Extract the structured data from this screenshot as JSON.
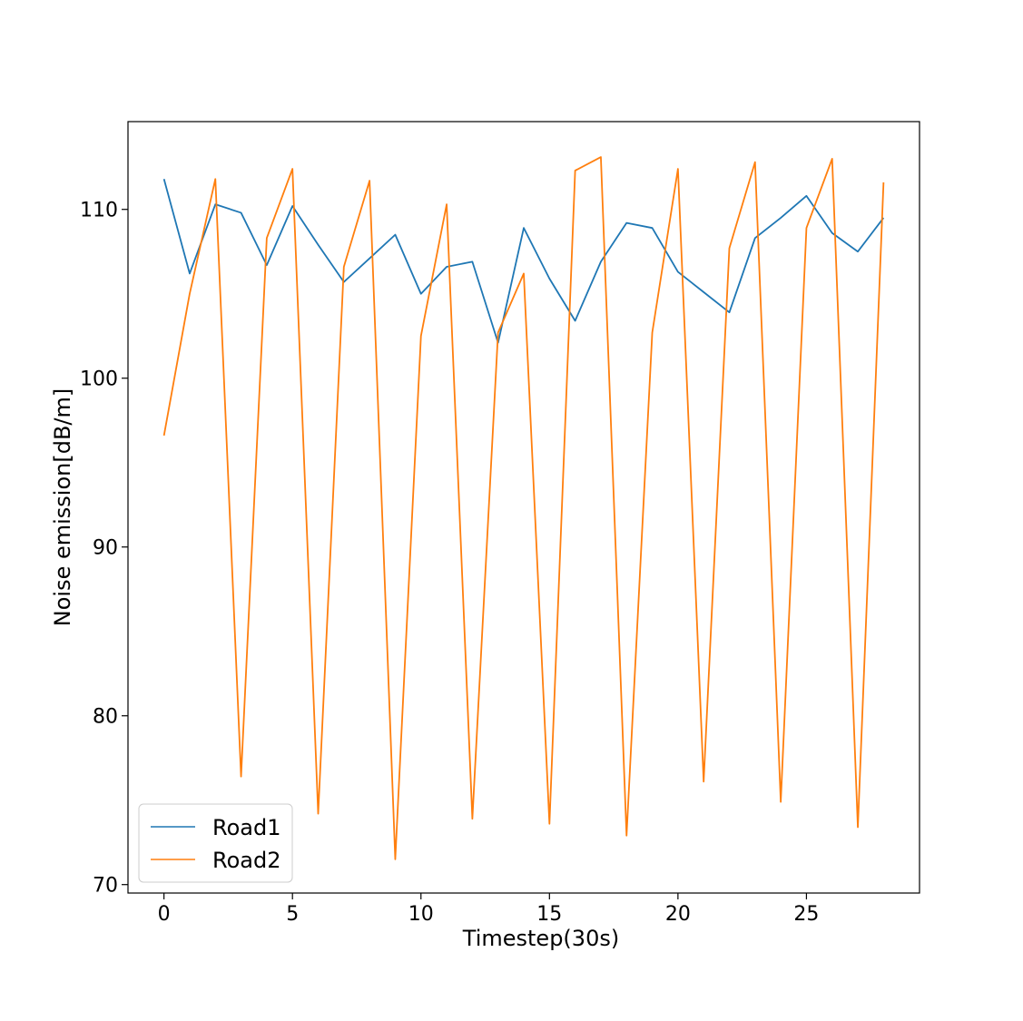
{
  "chart_data": {
    "type": "line",
    "title": "",
    "xlabel": "Timestep(30s)",
    "ylabel": "Noise emission[dB/m]",
    "xlim": [
      -1.4,
      29.4
    ],
    "ylim": [
      69.5,
      115.2
    ],
    "xticks": [
      0,
      5,
      10,
      15,
      20,
      25
    ],
    "yticks": [
      70,
      80,
      90,
      100,
      110
    ],
    "grid": false,
    "legend_position": "lower-left",
    "x": [
      0,
      1,
      2,
      3,
      4,
      5,
      6,
      7,
      8,
      9,
      10,
      11,
      12,
      13,
      14,
      15,
      16,
      17,
      18,
      19,
      20,
      21,
      22,
      23,
      24,
      25,
      26,
      27,
      28
    ],
    "series": [
      {
        "name": "Road1",
        "color": "#1f77b4",
        "values": [
          111.8,
          106.2,
          110.3,
          109.8,
          106.7,
          110.2,
          107.9,
          105.7,
          107.1,
          108.5,
          105.0,
          106.6,
          106.9,
          102.1,
          108.9,
          105.9,
          103.4,
          106.9,
          109.2,
          108.9,
          106.3,
          105.1,
          103.9,
          108.3,
          109.5,
          110.8,
          108.6,
          107.5,
          109.5
        ]
      },
      {
        "name": "Road2",
        "color": "#ff7f0e",
        "values": [
          96.6,
          105.0,
          111.8,
          76.4,
          108.3,
          112.4,
          74.2,
          106.6,
          111.7,
          71.5,
          102.5,
          110.3,
          73.9,
          102.7,
          106.2,
          73.6,
          112.3,
          113.1,
          72.9,
          102.7,
          112.4,
          76.1,
          107.7,
          112.8,
          74.9,
          108.9,
          113.0,
          73.4,
          111.6
        ]
      }
    ]
  }
}
